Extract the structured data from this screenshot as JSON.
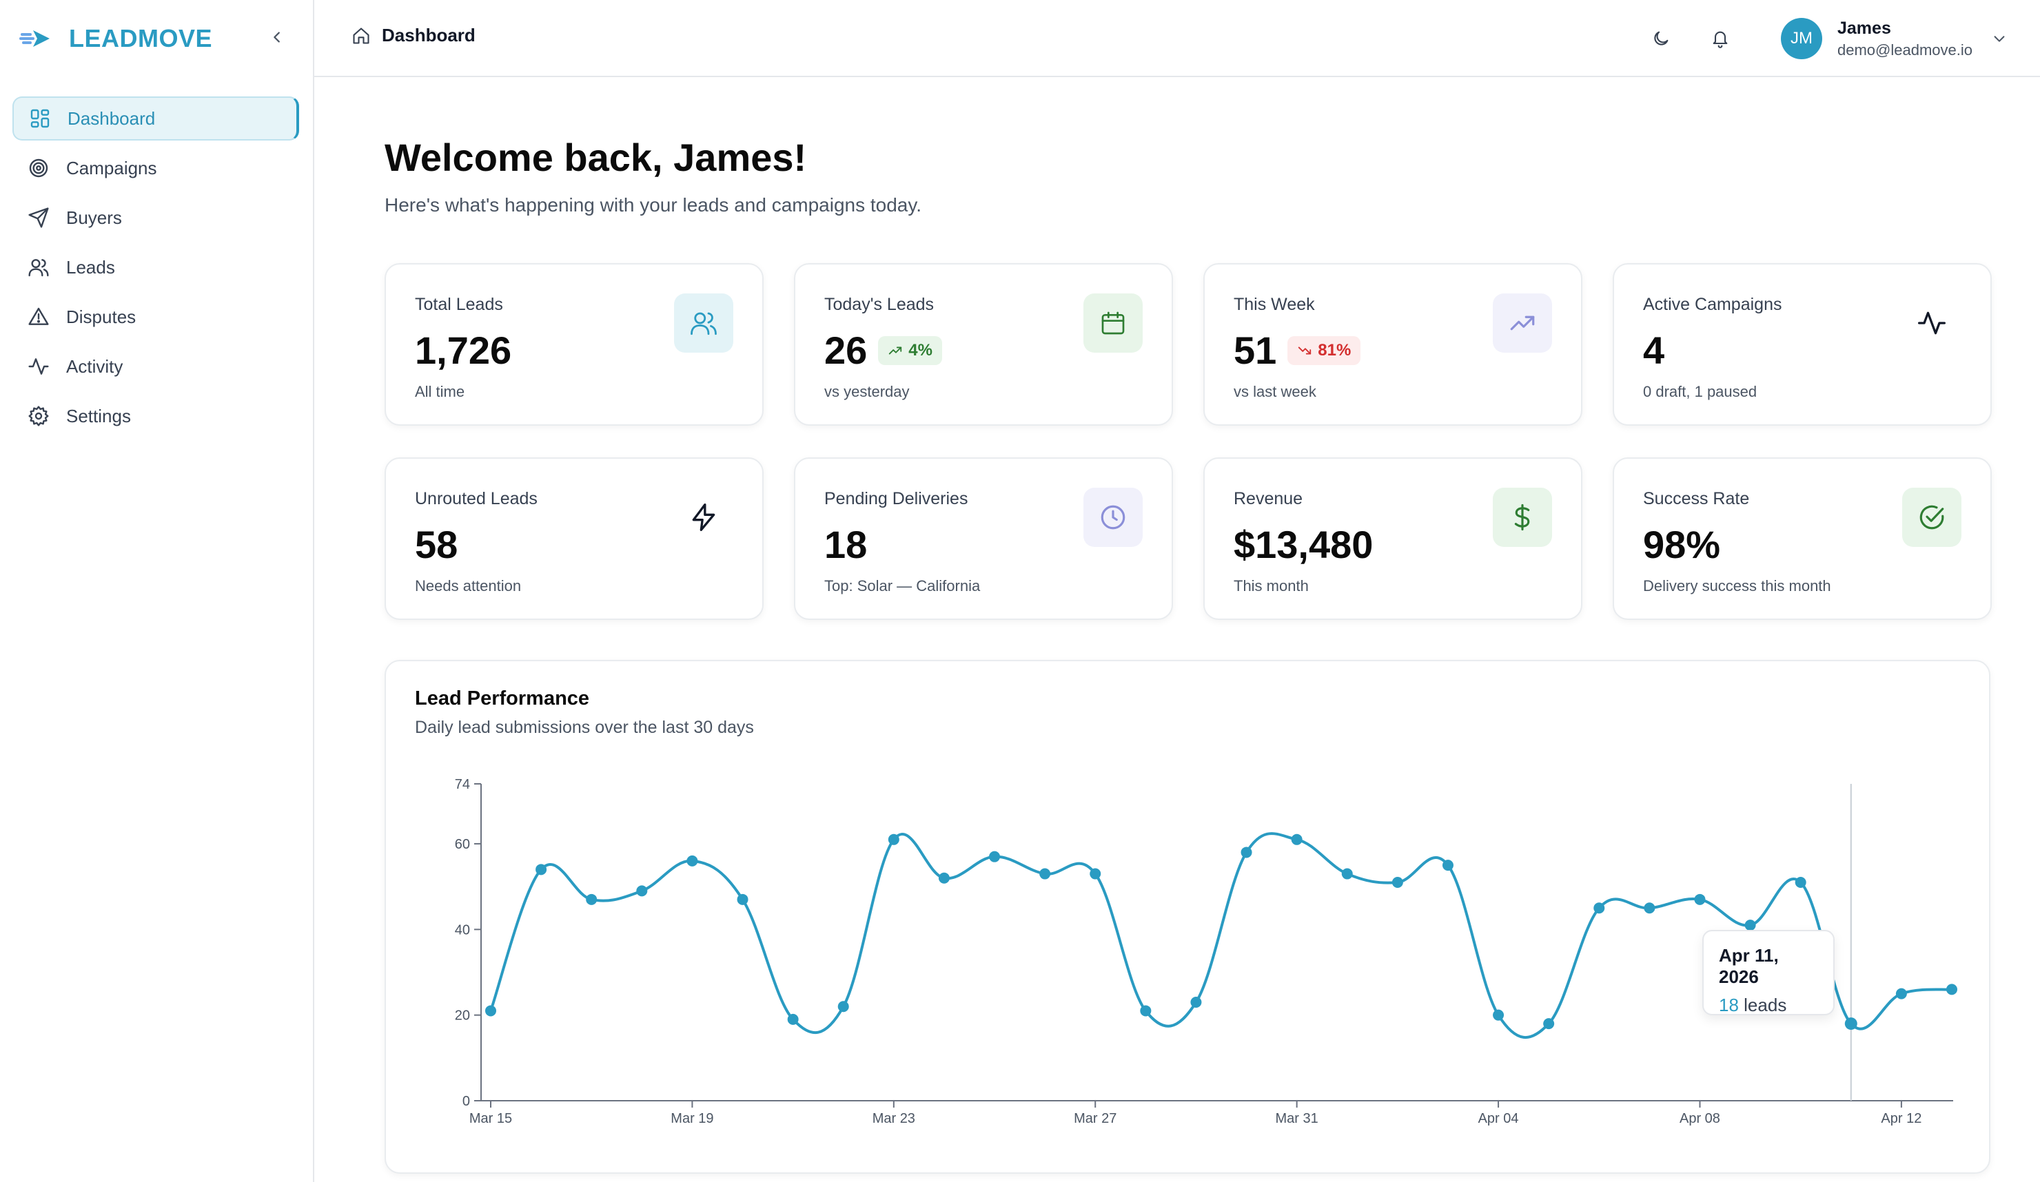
{
  "brand": {
    "name": "LEADMOVE"
  },
  "sidebar": {
    "items": [
      {
        "label": "Dashboard",
        "icon": "dashboard-grid-icon",
        "active": true
      },
      {
        "label": "Campaigns",
        "icon": "target-icon"
      },
      {
        "label": "Buyers",
        "icon": "send-icon"
      },
      {
        "label": "Leads",
        "icon": "users-icon"
      },
      {
        "label": "Disputes",
        "icon": "alert-triangle-icon"
      },
      {
        "label": "Activity",
        "icon": "activity-icon"
      },
      {
        "label": "Settings",
        "icon": "gear-icon"
      }
    ]
  },
  "header": {
    "breadcrumb": "Dashboard",
    "user": {
      "initials": "JM",
      "name": "James",
      "email": "demo@leadmove.io"
    }
  },
  "welcome": {
    "title": "Welcome back, James!",
    "subtitle": "Here's what's happening with your leads and campaigns today."
  },
  "stats": [
    {
      "label": "Total Leads",
      "value": "1,726",
      "sub": "All time",
      "icon": "users-icon"
    },
    {
      "label": "Today's Leads",
      "value": "26",
      "badge": "4%",
      "badge_dir": "up",
      "sub": "vs yesterday",
      "icon": "calendar-icon"
    },
    {
      "label": "This Week",
      "value": "51",
      "badge": "81%",
      "badge_dir": "down",
      "sub": "vs last week",
      "icon": "trending-up-icon"
    },
    {
      "label": "Active Campaigns",
      "value": "4",
      "sub": "0 draft, 1 paused",
      "icon": "activity-icon"
    },
    {
      "label": "Unrouted Leads",
      "value": "58",
      "sub": "Needs attention",
      "icon": "zap-icon"
    },
    {
      "label": "Pending Deliveries",
      "value": "18",
      "sub": "Top: Solar — California",
      "icon": "clock-icon"
    },
    {
      "label": "Revenue",
      "value": "$13,480",
      "sub": "This month",
      "icon": "dollar-icon"
    },
    {
      "label": "Success Rate",
      "value": "98%",
      "sub": "Delivery success this month",
      "icon": "check-circle-icon"
    }
  ],
  "colors": {
    "accent": "#2a9bc2",
    "green": "#2e7d32",
    "red": "#d32f2f",
    "purple": "#8b8fd8"
  },
  "chart": {
    "title": "Lead Performance",
    "subtitle": "Daily lead submissions over the last 30 days",
    "tooltip": {
      "date": "Apr 11, 2026",
      "value": "18",
      "unit": "leads"
    }
  },
  "chart_data": {
    "type": "line",
    "x": [
      "Mar 15",
      "Mar 16",
      "Mar 17",
      "Mar 18",
      "Mar 19",
      "Mar 20",
      "Mar 21",
      "Mar 22",
      "Mar 23",
      "Mar 24",
      "Mar 25",
      "Mar 26",
      "Mar 27",
      "Mar 28",
      "Mar 29",
      "Mar 30",
      "Mar 31",
      "Apr 01",
      "Apr 02",
      "Apr 03",
      "Apr 04",
      "Apr 05",
      "Apr 06",
      "Apr 07",
      "Apr 08",
      "Apr 09",
      "Apr 10",
      "Apr 11",
      "Apr 12",
      "Apr 13"
    ],
    "tick_labels": [
      "Mar 15",
      "Mar 19",
      "Mar 23",
      "Mar 27",
      "Mar 31",
      "Apr 04",
      "Apr 08",
      "Apr 12"
    ],
    "y_ticks": [
      0,
      20,
      40,
      60,
      74
    ],
    "ylim": [
      0,
      74
    ],
    "series": [
      {
        "values": [
          21,
          54,
          47,
          49,
          56,
          47,
          19,
          22,
          61,
          52,
          57,
          53,
          53,
          21,
          23,
          58,
          61,
          53,
          51,
          55,
          20,
          18,
          45,
          45,
          47,
          41,
          51,
          18,
          25,
          26
        ]
      }
    ],
    "highlight_index": 27
  }
}
